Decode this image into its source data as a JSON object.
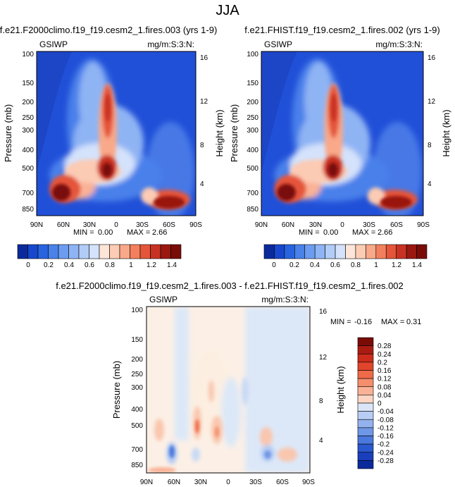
{
  "page_title": "JJA",
  "chart_data": [
    {
      "type": "heatmap",
      "title": "f.e21.F2000climo.f19_f19.cesm2_1.fires.003 (yrs 1-9)",
      "left_label": "GSIWP",
      "right_label": "mg/m:S:3:N:",
      "ylabel": "Pressure (mb)",
      "ylabel_right": "Height (km)",
      "xlabel": "",
      "x_ticks": [
        "90N",
        "60N",
        "30N",
        "0",
        "30S",
        "60S",
        "90S"
      ],
      "x_range": [
        90,
        -90
      ],
      "y_ticks": [
        "100",
        "150",
        "200",
        "250",
        "300",
        "400",
        "500",
        "700",
        "850"
      ],
      "y_ticks_right": [
        "16",
        "12",
        "8",
        "4"
      ],
      "y_range_mb": [
        100,
        1000
      ],
      "min_label": "MIN =",
      "min_value": "0.00",
      "max_label": "MAX =",
      "max_value": "2.66",
      "colorbar_labels": [
        "0",
        "0.2",
        "0.4",
        "0.6",
        "0.8",
        "1",
        "1.2",
        "1.4"
      ]
    },
    {
      "type": "heatmap",
      "title": "f.e21.FHIST.f19_f19.cesm2_1.fires.002 (yrs 1-9)",
      "left_label": "GSIWP",
      "right_label": "mg/m:S:3:N:",
      "ylabel": "Pressure (mb)",
      "ylabel_right": "Height (km)",
      "xlabel": "",
      "x_ticks": [
        "90N",
        "60N",
        "30N",
        "0",
        "30S",
        "60S",
        "90S"
      ],
      "x_range": [
        90,
        -90
      ],
      "y_ticks": [
        "100",
        "150",
        "200",
        "250",
        "300",
        "400",
        "500",
        "700",
        "850"
      ],
      "y_ticks_right": [
        "16",
        "12",
        "8",
        "4"
      ],
      "y_range_mb": [
        100,
        1000
      ],
      "min_label": "MIN =",
      "min_value": "0.00",
      "max_label": "MAX =",
      "max_value": "2.66",
      "colorbar_labels": [
        "0",
        "0.2",
        "0.4",
        "0.6",
        "0.8",
        "1",
        "1.2",
        "1.4"
      ]
    },
    {
      "type": "heatmap",
      "title": "f.e21.F2000climo.f19_f19.cesm2_1.fires.003 - f.e21.FHIST.f19_f19.cesm2_1.fires.002",
      "left_label": "GSIWP",
      "right_label": "mg/m:S:3:N:",
      "ylabel": "Pressure (mb)",
      "ylabel_right": "Height (km)",
      "xlabel": "",
      "x_ticks": [
        "90N",
        "60N",
        "30N",
        "0",
        "30S",
        "60S",
        "90S"
      ],
      "x_range": [
        90,
        -90
      ],
      "y_ticks": [
        "100",
        "150",
        "200",
        "250",
        "300",
        "400",
        "500",
        "700",
        "850"
      ],
      "y_ticks_right": [
        "16",
        "12",
        "8",
        "4"
      ],
      "y_range_mb": [
        100,
        1000
      ],
      "min_label": "MIN =",
      "min_value": "-0.16",
      "max_label": "MAX =",
      "max_value": "0.31",
      "colorbar_labels": [
        "0.28",
        "0.24",
        "0.2",
        "0.16",
        "0.12",
        "0.08",
        "0.04",
        "0",
        "-0.04",
        "-0.08",
        "-0.12",
        "-0.16",
        "-0.2",
        "-0.24",
        "-0.28"
      ]
    }
  ],
  "colors": {
    "seq_palette": [
      "#0a2a9c",
      "#1747cc",
      "#2864e0",
      "#4a82ea",
      "#6c9cf0",
      "#8eb4f4",
      "#b2ccf8",
      "#d4e2fb",
      "#fde6d8",
      "#fcccb4",
      "#f9a889",
      "#f27f5e",
      "#e4553a",
      "#c83222",
      "#9a1810",
      "#7a0c08"
    ],
    "div_palette": [
      "#7a0c08",
      "#aa1c12",
      "#cc2c1c",
      "#e1452c",
      "#ef6a48",
      "#f58e6c",
      "#f9b296",
      "#fcd6c2",
      "#dae6f8",
      "#b8cdf3",
      "#94b2ed",
      "#7096e6",
      "#4a78dd",
      "#2a58cf",
      "#1a3fbc",
      "#0a2a9c"
    ]
  }
}
